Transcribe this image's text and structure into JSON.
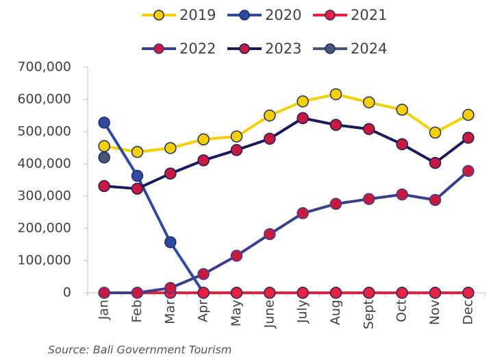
{
  "chart_data": {
    "type": "line",
    "categories": [
      "Jan",
      "Feb",
      "Mar",
      "Apr",
      "May",
      "June",
      "July",
      "Aug",
      "Sept",
      "Oct",
      "Nov",
      "Dec"
    ],
    "series": [
      {
        "name": "2019",
        "color": "#f5d000",
        "marker_color": "#f5d000",
        "values": [
          455000,
          437000,
          449000,
          476000,
          485000,
          550000,
          594000,
          616000,
          591000,
          568000,
          497000,
          552000
        ]
      },
      {
        "name": "2020",
        "color": "#2e4a9e",
        "marker_color": "#2e4a9e",
        "values": [
          528000,
          363000,
          157000,
          0,
          0,
          0,
          0,
          0,
          0,
          0,
          0,
          0
        ]
      },
      {
        "name": "2021",
        "color": "#e8213f",
        "marker_color": "#e8213f",
        "values": [
          0,
          0,
          0,
          0,
          0,
          0,
          0,
          0,
          0,
          0,
          0,
          0
        ]
      },
      {
        "name": "2022",
        "color": "#3b3d8f",
        "marker_color": "#c8193f",
        "values": [
          0,
          0,
          15000,
          58000,
          115000,
          182000,
          247000,
          276000,
          291000,
          305000,
          288000,
          378000
        ]
      },
      {
        "name": "2023",
        "color": "#1a1a5e",
        "marker_color": "#c8193f",
        "values": [
          331000,
          323000,
          370000,
          411000,
          443000,
          478000,
          542000,
          521000,
          508000,
          461000,
          403000,
          481000
        ]
      },
      {
        "name": "2024",
        "color": "#4a5578",
        "marker_color": "#4a5578",
        "values": [
          420000,
          null,
          null,
          null,
          null,
          null,
          null,
          null,
          null,
          null,
          null,
          null
        ]
      }
    ],
    "ylim": [
      0,
      700000
    ],
    "yticks": [
      0,
      {
        "value": 100000,
        "label": "100,000"
      },
      {
        "value": 200000,
        "label": "200,000"
      },
      {
        "value": 300000,
        "label": "300,000"
      },
      {
        "value": 400000,
        "label": "400,000"
      },
      {
        "value": 500000,
        "label": "500,000"
      },
      {
        "value": 600000,
        "label": "600,000"
      },
      {
        "value": 700000,
        "label": "700,000"
      }
    ],
    "source": "Source: Bali Government Tourism"
  }
}
